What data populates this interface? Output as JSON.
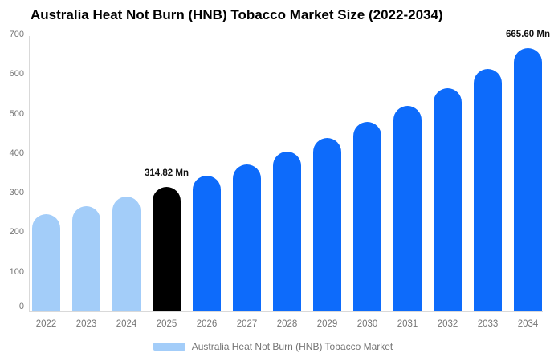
{
  "chart_data": {
    "type": "bar",
    "title": "Australia Heat Not Burn (HNB) Tobacco Market Size (2022-2034)",
    "categories": [
      "2022",
      "2023",
      "2024",
      "2025",
      "2026",
      "2027",
      "2028",
      "2029",
      "2030",
      "2031",
      "2032",
      "2033",
      "2034"
    ],
    "values": [
      245,
      266,
      290,
      314.82,
      342,
      372,
      404,
      439,
      478,
      519,
      564,
      613,
      665.6
    ],
    "value_unit": "Mn",
    "xlabel": "",
    "ylabel": "",
    "ylim": [
      0,
      700
    ],
    "y_ticks": [
      0,
      100,
      200,
      300,
      400,
      500,
      600,
      700
    ],
    "grid": "off",
    "legend_position": "bottom-center",
    "bar_roles": [
      "historical",
      "historical",
      "historical",
      "highlight",
      "forecast",
      "forecast",
      "forecast",
      "forecast",
      "forecast",
      "forecast",
      "forecast",
      "forecast",
      "forecast"
    ],
    "annotations": [
      {
        "category": "2025",
        "label": "314.82 Mn"
      },
      {
        "category": "2034",
        "label": "665.60 Mn"
      }
    ],
    "legend": [
      {
        "label": "Australia Heat Not Burn (HNB) Tobacco Market",
        "color": "#a3cdf9"
      }
    ],
    "colors": {
      "historical": "#a3cdf9",
      "highlight": "#000000",
      "forecast": "#0d6bfb",
      "axis_line": "#d9d9d9",
      "tick_text": "#757575",
      "title_text": "#000000",
      "annotation_text": "#111111",
      "background": "#ffffff"
    }
  }
}
